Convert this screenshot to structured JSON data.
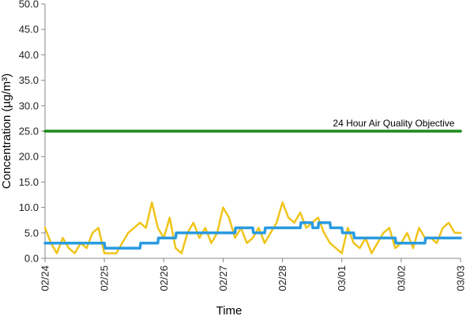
{
  "chart_data": {
    "type": "line",
    "title": "",
    "xlabel": "Time",
    "ylabel": "Concentration (µg/m³)",
    "ylim": [
      0,
      50
    ],
    "yticks": [
      "0.0",
      "5.0",
      "10.0",
      "15.0",
      "20.0",
      "25.0",
      "30.0",
      "35.0",
      "40.0",
      "45.0",
      "50.0"
    ],
    "x_range": [
      0,
      7
    ],
    "x_ticks": [
      "02/24",
      "02/25",
      "02/26",
      "02/27",
      "02/28",
      "03/01",
      "03/02",
      "03/03"
    ],
    "grid": false,
    "legend": "none",
    "annotations": [
      {
        "text": "24 Hour Air Quality Objective",
        "x": 6.9,
        "y": 25
      }
    ],
    "series": [
      {
        "color": "#f0c419",
        "x": [
          0,
          0.1,
          0.2,
          0.3,
          0.4,
          0.5,
          0.6,
          0.7,
          0.8,
          0.9,
          1.0,
          1.1,
          1.2,
          1.3,
          1.4,
          1.5,
          1.6,
          1.7,
          1.8,
          1.9,
          2.0,
          2.1,
          2.2,
          2.3,
          2.4,
          2.5,
          2.6,
          2.7,
          2.8,
          2.9,
          3.0,
          3.1,
          3.2,
          3.3,
          3.4,
          3.5,
          3.6,
          3.7,
          3.8,
          3.9,
          4.0,
          4.1,
          4.2,
          4.3,
          4.4,
          4.5,
          4.6,
          4.7,
          4.8,
          4.9,
          5.0,
          5.1,
          5.2,
          5.3,
          5.4,
          5.5,
          5.6,
          5.7,
          5.8,
          5.9,
          6.0,
          6.1,
          6.2,
          6.3,
          6.4,
          6.5,
          6.6,
          6.7,
          6.8,
          6.9,
          7.0
        ],
        "values": [
          6,
          3,
          1,
          4,
          2,
          1,
          3,
          2,
          5,
          6,
          1,
          1,
          1,
          3,
          5,
          6,
          7,
          6,
          11,
          6,
          4,
          8,
          2,
          1,
          5,
          7,
          4,
          6,
          3,
          5,
          10,
          8,
          4,
          6,
          3,
          4,
          6,
          3,
          5,
          7,
          11,
          8,
          7,
          9,
          6,
          7,
          8,
          5,
          3,
          2,
          1,
          6,
          3,
          2,
          4,
          1,
          3,
          5,
          6,
          2,
          3,
          5,
          2,
          6,
          4,
          4,
          3,
          6,
          7,
          5,
          5
        ]
      },
      {
        "color": "#2a9be0",
        "x": [
          0,
          0.8,
          0.81,
          1.0,
          1.01,
          1.3,
          1.31,
          1.6,
          1.61,
          1.9,
          1.91,
          2.2,
          2.21,
          2.6,
          2.61,
          3.2,
          3.21,
          3.5,
          3.51,
          3.7,
          3.71,
          4.3,
          4.31,
          4.5,
          4.51,
          4.6,
          4.61,
          4.8,
          4.81,
          5.0,
          5.01,
          5.2,
          5.21,
          5.9,
          5.91,
          6.4,
          6.41,
          7.0
        ],
        "values": [
          3,
          3,
          3,
          3,
          2,
          2,
          2,
          2,
          3,
          3,
          4,
          4,
          5,
          5,
          5,
          5,
          6,
          6,
          5,
          5,
          6,
          6,
          7,
          7,
          6,
          6,
          7,
          7,
          6,
          6,
          5,
          5,
          4,
          4,
          3,
          3,
          4,
          4
        ]
      },
      {
        "color": "#1a8a1a",
        "x": [
          0,
          7
        ],
        "values": [
          25,
          25
        ]
      }
    ]
  }
}
